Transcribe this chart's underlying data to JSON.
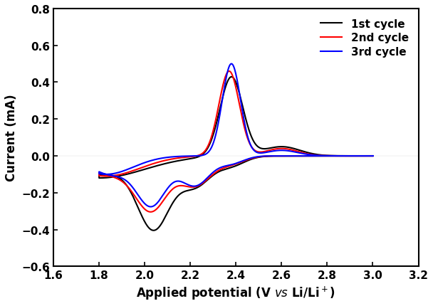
{
  "title": "",
  "xlabel": "Applied potential (V vs Li/Li⁺)",
  "ylabel": "Current (mA)",
  "xlim": [
    1.6,
    3.2
  ],
  "ylim": [
    -0.6,
    0.8
  ],
  "xticks": [
    1.6,
    1.8,
    2.0,
    2.2,
    2.4,
    2.6,
    2.8,
    3.0,
    3.2
  ],
  "yticks": [
    -0.6,
    -0.4,
    -0.2,
    0.0,
    0.2,
    0.4,
    0.6,
    0.8
  ],
  "legend": [
    "1st cycle",
    "2nd cycle",
    "3rd cycle"
  ],
  "colors": [
    "#000000",
    "#ff0000",
    "#0000ff"
  ],
  "linewidth": 1.5,
  "background_color": "#ffffff"
}
